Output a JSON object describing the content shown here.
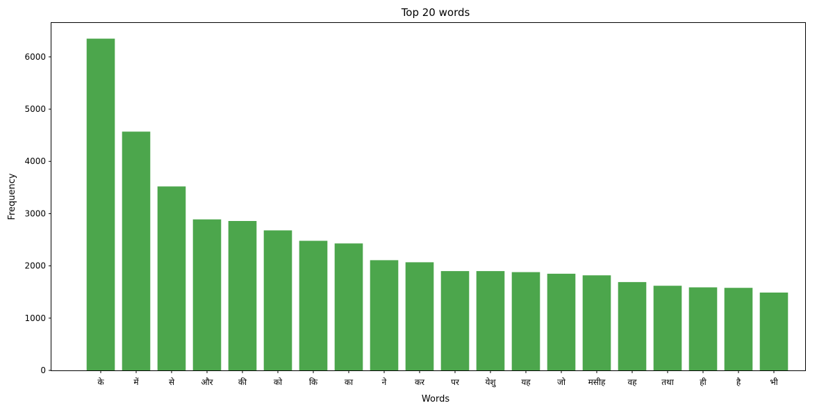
{
  "chart_data": {
    "type": "bar",
    "title": "Top 20 words",
    "xlabel": "Words",
    "ylabel": "Frequency",
    "ylim": [
      0,
      6650
    ],
    "yticks": [
      0,
      1000,
      2000,
      3000,
      4000,
      5000,
      6000
    ],
    "categories": [
      "के",
      "में",
      "से",
      "और",
      "की",
      "को",
      "कि",
      "का",
      "ने",
      "कर",
      "पर",
      "येशु",
      "यह",
      "जो",
      "मसीह",
      "वह",
      "तथा",
      "ही",
      "है",
      "भी"
    ],
    "values": [
      6350,
      4570,
      3520,
      2890,
      2860,
      2680,
      2480,
      2430,
      2110,
      2070,
      1900,
      1900,
      1880,
      1850,
      1820,
      1690,
      1620,
      1590,
      1580,
      1490
    ],
    "bar_color": "#4ca64c",
    "grid": false,
    "legend": "none"
  }
}
